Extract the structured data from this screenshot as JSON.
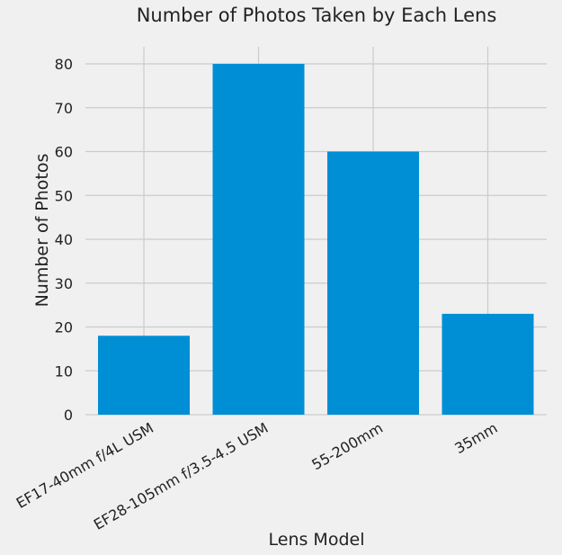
{
  "chart_data": {
    "type": "bar",
    "title": "Number of Photos Taken by Each Lens",
    "xlabel": "Lens Model",
    "ylabel": "Number of Photos",
    "categories": [
      "EF17-40mm f/4L USM",
      "EF28-105mm f/3.5-4.5 USM",
      "55-200mm",
      "35mm"
    ],
    "values": [
      18,
      80,
      60,
      23
    ],
    "ylim": [
      0,
      84
    ],
    "yticks": [
      0,
      10,
      20,
      30,
      40,
      50,
      60,
      70,
      80
    ],
    "grid": true,
    "colors": {
      "bar": "#008fd5",
      "grid": "#cbcbcb",
      "background": "#f0f0f0",
      "text": "#222222"
    }
  }
}
